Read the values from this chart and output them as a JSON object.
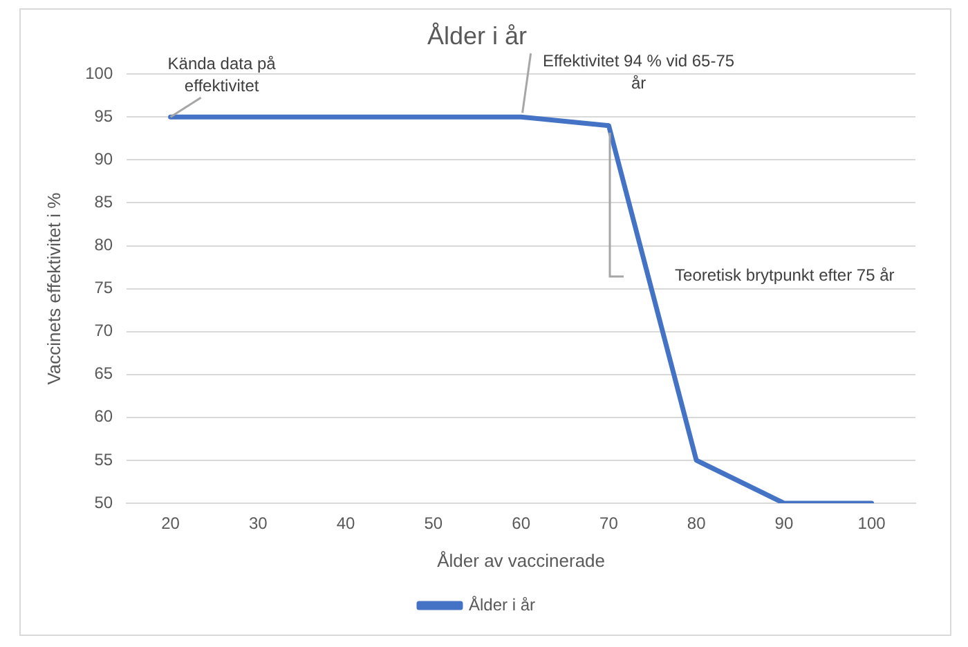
{
  "chart_data": {
    "type": "line",
    "title": "Ålder i år",
    "xlabel": "Ålder av vaccinerade",
    "ylabel": "Vaccinets effektivitet i %",
    "categories": [
      "20",
      "30",
      "40",
      "50",
      "60",
      "70",
      "80",
      "90",
      "100"
    ],
    "series": [
      {
        "name": "Ålder i år",
        "color": "#4472c4",
        "values": [
          95,
          95,
          95,
          95,
          95,
          94,
          55,
          50,
          50
        ]
      }
    ],
    "ylim": [
      50,
      100
    ],
    "yticks": [
      50,
      55,
      60,
      65,
      70,
      75,
      80,
      85,
      90,
      95,
      100
    ],
    "grid": "y",
    "legend": "bottom",
    "marker": "none",
    "line_style": "solid",
    "annotations": [
      {
        "text": "Kända data på effektivitet",
        "x": "20",
        "y": 95
      },
      {
        "text": "Effektivitet 94 % vid 65-75 år",
        "x": "60",
        "y": 95
      },
      "Teoretisk brytpunkt efter 75 år"
    ]
  }
}
